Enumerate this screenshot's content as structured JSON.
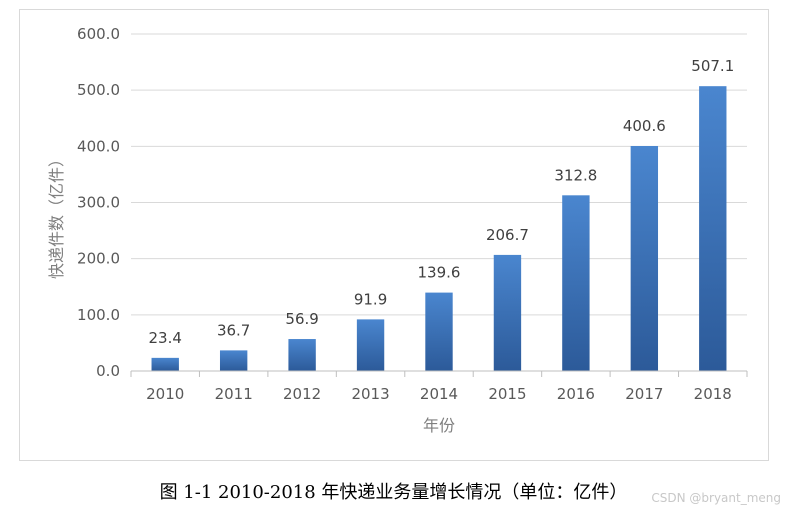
{
  "chart_data": {
    "type": "bar",
    "title": "",
    "categories": [
      "2010",
      "2011",
      "2012",
      "2013",
      "2014",
      "2015",
      "2016",
      "2017",
      "2018"
    ],
    "values": [
      23.4,
      36.7,
      56.9,
      91.9,
      139.6,
      206.7,
      312.8,
      400.6,
      507.1
    ],
    "value_labels": [
      "23.4",
      "36.7",
      "56.9",
      "91.9",
      "139.6",
      "206.7",
      "312.8",
      "400.6",
      "507.1"
    ],
    "xlabel": "年份",
    "ylabel": "快递件数（亿件）",
    "ylim": [
      0,
      600
    ],
    "yticks": [
      0,
      100,
      200,
      300,
      400,
      500,
      600
    ],
    "ytick_labels": [
      "0.0",
      "100.0",
      "200.0",
      "300.0",
      "400.0",
      "500.0",
      "600.0"
    ],
    "grid": true,
    "legend": "none",
    "colors": {
      "bar_top": "#4a86cf",
      "bar_bottom": "#2c5a99",
      "grid": "#d9d9d9",
      "axis": "#bfbfbf"
    }
  },
  "caption": "图 1-1 2010-2018 年快递业务量增长情况（单位：亿件）",
  "watermark": "CSDN @bryant_meng"
}
